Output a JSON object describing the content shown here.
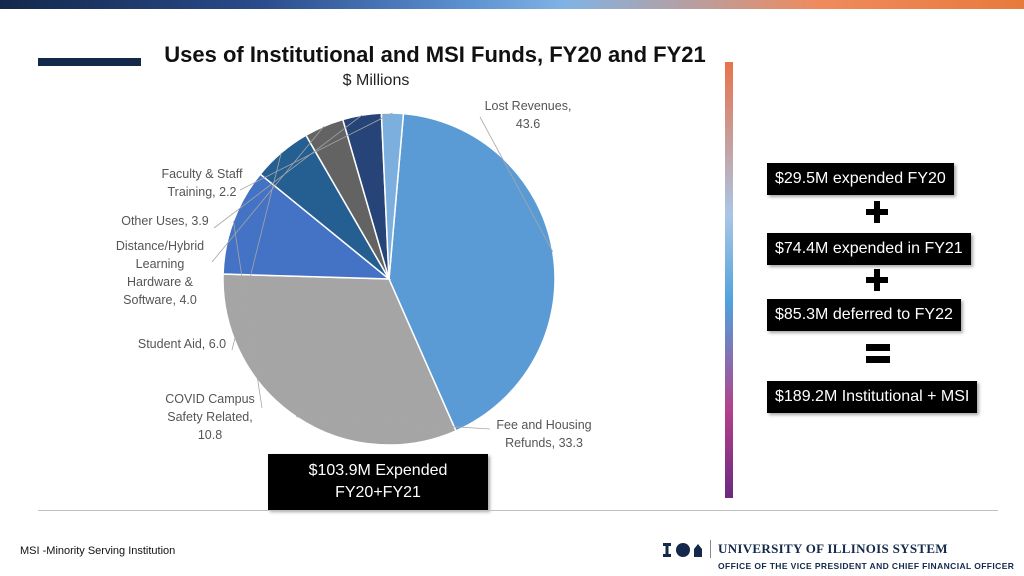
{
  "chart_data": {
    "type": "pie",
    "title": "Uses of Institutional and MSI Funds, FY20 and FY21",
    "subtitle": "$ Millions",
    "slices": [
      {
        "label_lines": [
          "Lost Revenues,",
          "43.6"
        ],
        "value": 43.6,
        "color": "#5b9bd5"
      },
      {
        "label_lines": [
          "Fee and Housing",
          "Refunds, 33.3"
        ],
        "value": 33.3,
        "color": "#a5a5a5"
      },
      {
        "label_lines": [
          "COVID Campus",
          "Safety Related,",
          "10.8"
        ],
        "value": 10.8,
        "color": "#4472c4"
      },
      {
        "label_lines": [
          "Student Aid, 6.0"
        ],
        "value": 6.0,
        "color": "#255e91"
      },
      {
        "label_lines": [
          "Distance/Hybrid",
          "Learning",
          "Hardware &",
          "Software, 4.0"
        ],
        "value": 4.0,
        "color": "#636363"
      },
      {
        "label_lines": [
          "Other Uses, 3.9"
        ],
        "value": 3.9,
        "color": "#264478"
      },
      {
        "label_lines": [
          "Faculty & Staff",
          "Training, 2.2"
        ],
        "value": 2.2,
        "color": "#7cafdd"
      }
    ]
  },
  "total_box": {
    "line1": "$103.9M Expended",
    "line2": "FY20+FY21"
  },
  "calc": {
    "fy20": "$29.5M expended FY20",
    "fy21": "$74.4M expended in FY21",
    "fy22": "$85.3M deferred to FY22",
    "total": "$189.2M  Institutional + MSI"
  },
  "footnote": "MSI -Minority Serving Institution",
  "logo": {
    "name": "UNIVERSITY OF ILLINOIS SYSTEM",
    "sub": "OFFICE OF THE VICE PRESIDENT AND CHIEF FINANCIAL OFFICER"
  },
  "colors": {
    "accent_navy": "#13294b",
    "box_bg": "#000000"
  }
}
